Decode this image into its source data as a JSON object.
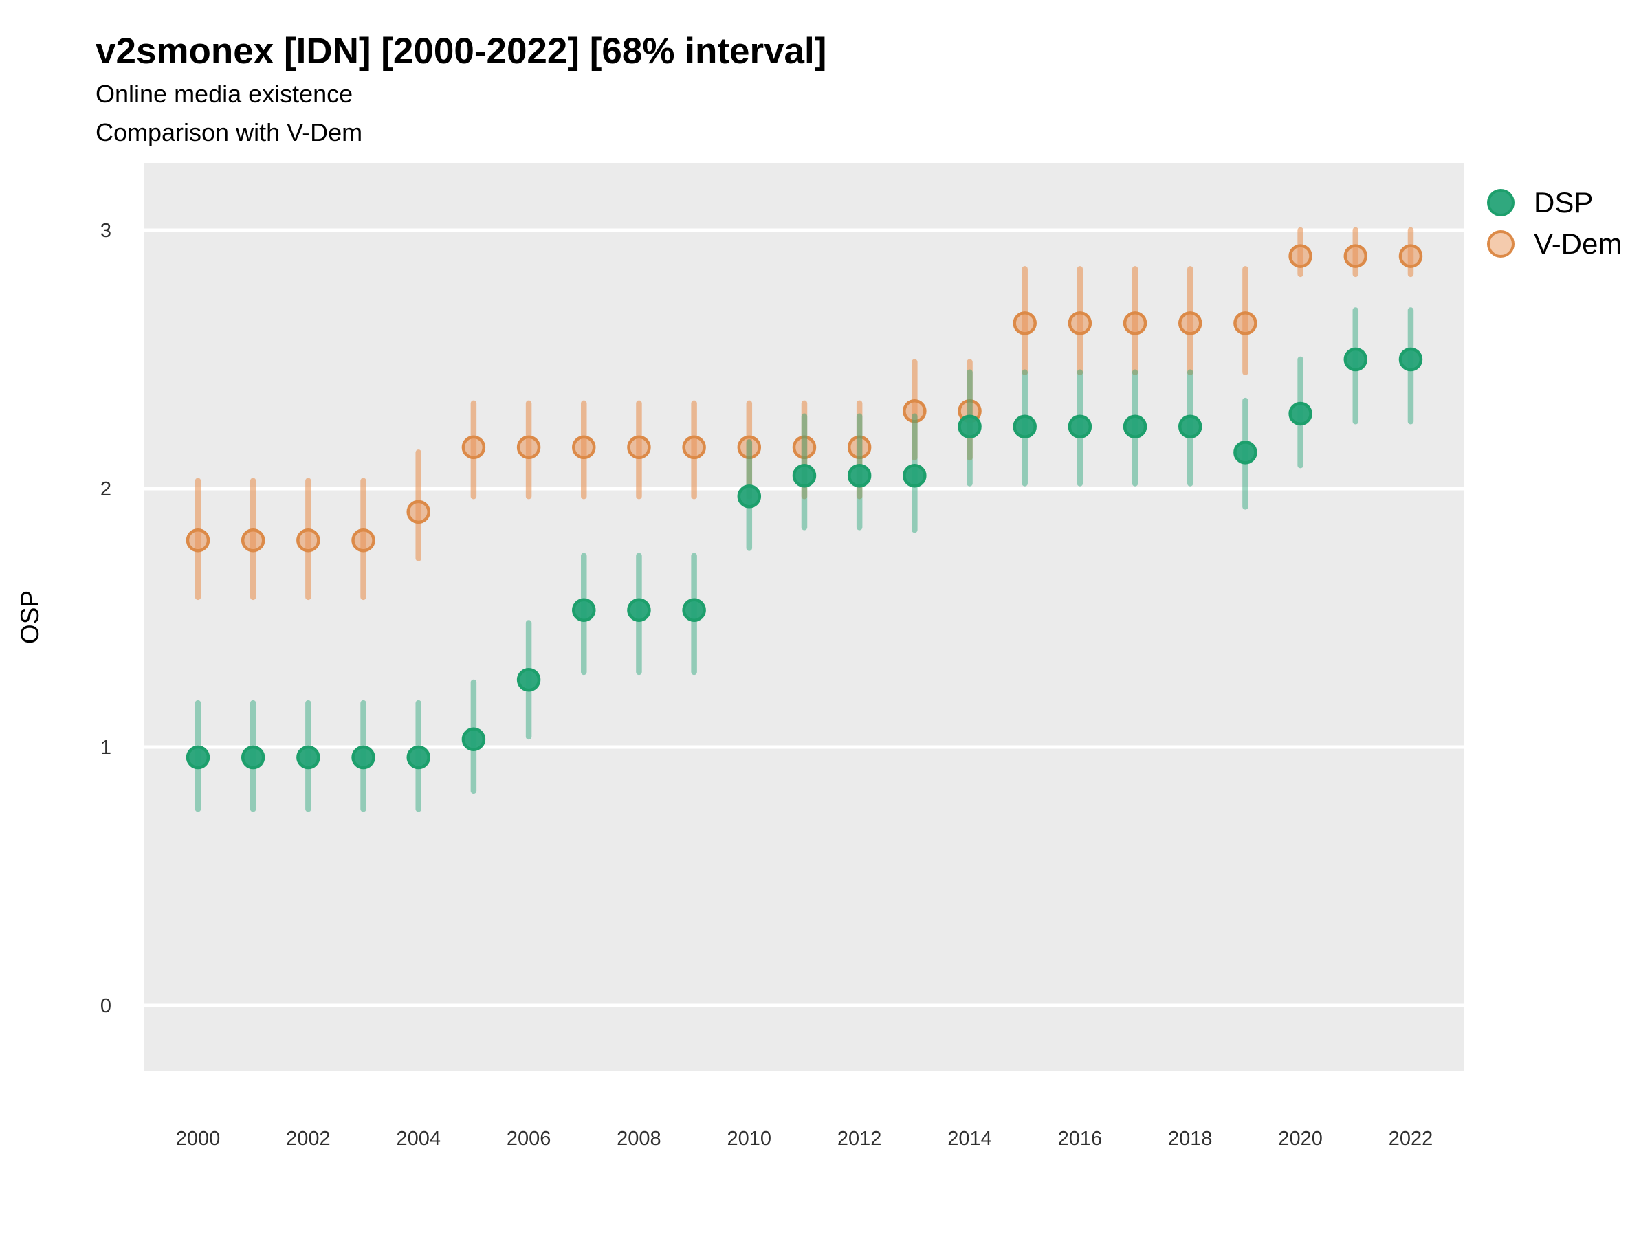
{
  "header": {
    "title": "v2smonex [IDN] [2000-2022] [68% interval]",
    "subtitle1": "Online media existence",
    "subtitle2": "Comparison with V-Dem"
  },
  "y_axis": {
    "label": "OSP",
    "ticks": [
      0,
      1,
      2,
      3
    ]
  },
  "x_axis": {
    "ticks": [
      2000,
      2002,
      2004,
      2006,
      2008,
      2010,
      2012,
      2014,
      2016,
      2018,
      2020,
      2022
    ]
  },
  "legend": {
    "items": [
      {
        "label": "DSP"
      },
      {
        "label": "V-Dem"
      }
    ]
  },
  "colors": {
    "plot_background": "#EBEBEB",
    "gridline": "#FFFFFF",
    "tick_text": "#303030",
    "title_text": "#000000",
    "dsp_fill": "#25A377",
    "dsp_stroke": "#1D9F6C",
    "vdem_fill": "#E9985C",
    "vdem_stroke": "#DC8A48"
  },
  "chart_data": {
    "type": "scatter",
    "title": "v2smonex [IDN] [2000-2022] [68% interval]",
    "subtitle": "Online media existence / Comparison with V-Dem",
    "interval": "68%",
    "xlabel": "",
    "ylabel": "OSP",
    "xlim": [
      1999,
      2023
    ],
    "ylim": [
      -0.25,
      3.26
    ],
    "grid": "major-horizontal-white",
    "legend_position": "right-top",
    "x": [
      2000,
      2001,
      2002,
      2003,
      2004,
      2005,
      2006,
      2007,
      2008,
      2009,
      2010,
      2011,
      2012,
      2013,
      2014,
      2015,
      2016,
      2017,
      2018,
      2019,
      2020,
      2021,
      2022
    ],
    "series": [
      {
        "name": "DSP",
        "color": "#25A377",
        "stroke": "#1D9F6C",
        "values": [
          0.96,
          0.96,
          0.96,
          0.96,
          0.96,
          1.03,
          1.26,
          1.53,
          1.53,
          1.53,
          1.97,
          2.05,
          2.05,
          2.05,
          2.24,
          2.24,
          2.24,
          2.24,
          2.24,
          2.14,
          2.29,
          2.5,
          2.5
        ],
        "lower": [
          0.76,
          0.76,
          0.76,
          0.76,
          0.76,
          0.83,
          1.04,
          1.29,
          1.29,
          1.29,
          1.77,
          1.85,
          1.85,
          1.84,
          2.02,
          2.02,
          2.02,
          2.02,
          2.02,
          1.93,
          2.09,
          2.26,
          2.26
        ],
        "upper": [
          1.17,
          1.17,
          1.17,
          1.17,
          1.17,
          1.25,
          1.48,
          1.74,
          1.74,
          1.74,
          2.18,
          2.28,
          2.28,
          2.28,
          2.45,
          2.45,
          2.45,
          2.45,
          2.45,
          2.34,
          2.5,
          2.69,
          2.69
        ]
      },
      {
        "name": "V-Dem",
        "color": "#E9985C",
        "stroke": "#DC8A48",
        "values": [
          1.8,
          1.8,
          1.8,
          1.8,
          1.91,
          2.16,
          2.16,
          2.16,
          2.16,
          2.16,
          2.16,
          2.16,
          2.16,
          2.3,
          2.3,
          2.64,
          2.64,
          2.64,
          2.64,
          2.64,
          2.9,
          2.9,
          2.9
        ],
        "lower": [
          1.58,
          1.58,
          1.58,
          1.58,
          1.73,
          1.97,
          1.97,
          1.97,
          1.97,
          1.97,
          1.97,
          1.97,
          1.97,
          2.12,
          2.12,
          2.45,
          2.45,
          2.45,
          2.45,
          2.45,
          2.83,
          2.83,
          2.83
        ],
        "upper": [
          2.03,
          2.03,
          2.03,
          2.03,
          2.14,
          2.33,
          2.33,
          2.33,
          2.33,
          2.33,
          2.33,
          2.33,
          2.33,
          2.49,
          2.49,
          2.85,
          2.85,
          2.85,
          2.85,
          2.85,
          3.0,
          3.0,
          3.0
        ]
      }
    ]
  }
}
